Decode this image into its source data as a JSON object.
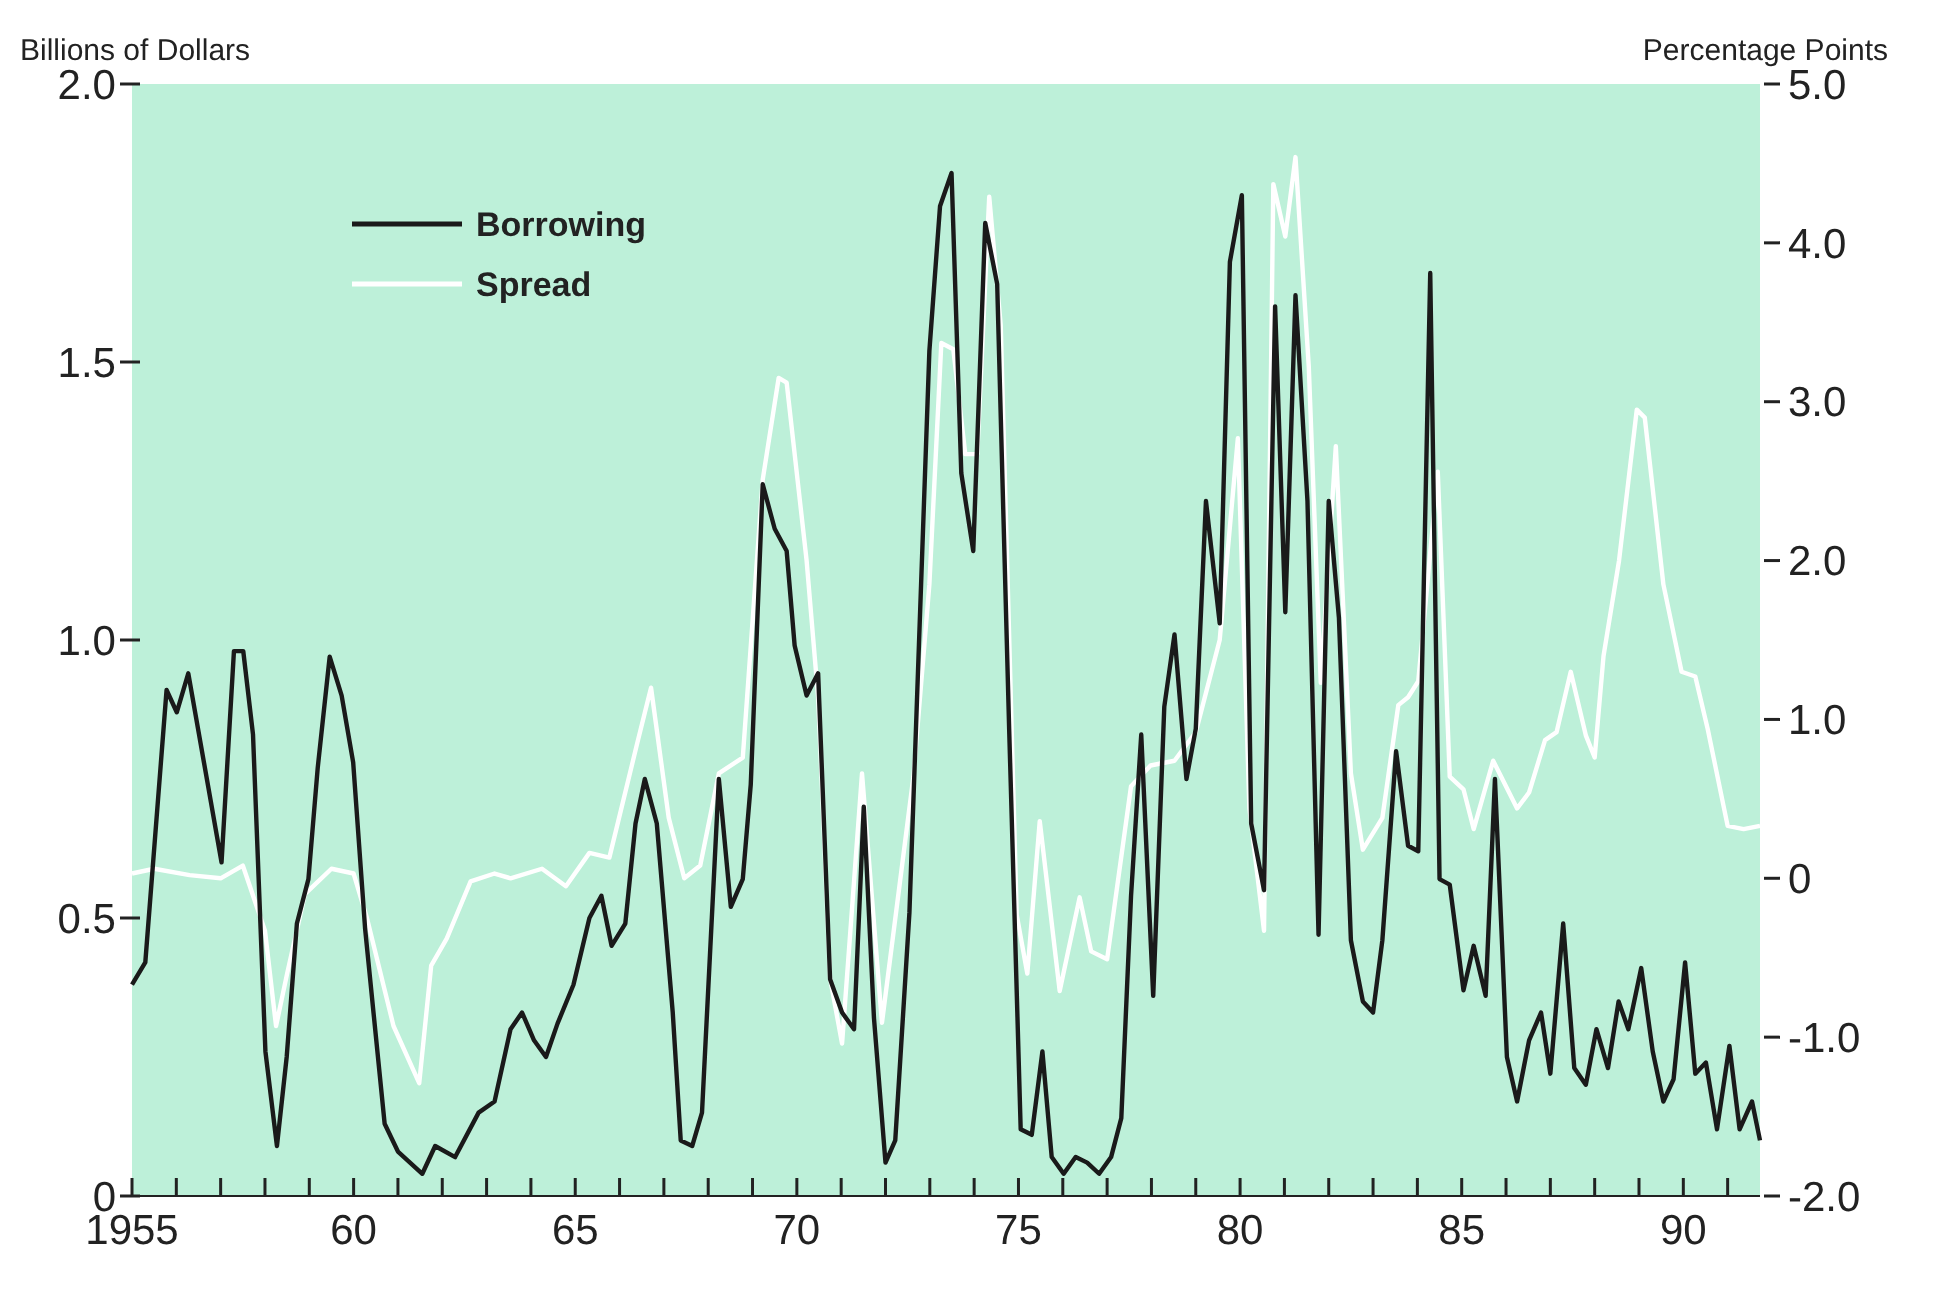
{
  "chart_data": {
    "type": "line",
    "ylabel": "Billions of Dollars",
    "y2label": "Percentage Points",
    "legend": "top left",
    "xlim": [
      1955,
      1991.73
    ],
    "xticks": [
      {
        "value": 1955,
        "label": "1955"
      },
      {
        "value": 1956,
        "label": null
      },
      {
        "value": 1957,
        "label": null
      },
      {
        "value": 1958,
        "label": null
      },
      {
        "value": 1959,
        "label": null
      },
      {
        "value": 1960,
        "label": "60"
      },
      {
        "value": 1961,
        "label": null
      },
      {
        "value": 1962,
        "label": null
      },
      {
        "value": 1963,
        "label": null
      },
      {
        "value": 1964,
        "label": null
      },
      {
        "value": 1965,
        "label": "65"
      },
      {
        "value": 1966,
        "label": null
      },
      {
        "value": 1967,
        "label": null
      },
      {
        "value": 1968,
        "label": null
      },
      {
        "value": 1969,
        "label": null
      },
      {
        "value": 1970,
        "label": "70"
      },
      {
        "value": 1971,
        "label": null
      },
      {
        "value": 1972,
        "label": null
      },
      {
        "value": 1973,
        "label": null
      },
      {
        "value": 1974,
        "label": null
      },
      {
        "value": 1975,
        "label": "75"
      },
      {
        "value": 1976,
        "label": null
      },
      {
        "value": 1977,
        "label": null
      },
      {
        "value": 1978,
        "label": null
      },
      {
        "value": 1979,
        "label": null
      },
      {
        "value": 1980,
        "label": "80"
      },
      {
        "value": 1981,
        "label": null
      },
      {
        "value": 1982,
        "label": null
      },
      {
        "value": 1983,
        "label": null
      },
      {
        "value": 1984,
        "label": null
      },
      {
        "value": 1985,
        "label": "85"
      },
      {
        "value": 1986,
        "label": null
      },
      {
        "value": 1987,
        "label": null
      },
      {
        "value": 1988,
        "label": null
      },
      {
        "value": 1989,
        "label": null
      },
      {
        "value": 1990,
        "label": "90"
      },
      {
        "value": 1991,
        "label": null
      }
    ],
    "ylim": [
      0,
      2
    ],
    "yticks": [
      0,
      0.5,
      {
        "value": 1,
        "label": "1.0"
      },
      1.5,
      {
        "value": 2,
        "label": "2.0"
      }
    ],
    "y2lim": [
      -2,
      5
    ],
    "y2ticks": [
      {
        "value": 5,
        "label": "5.0"
      },
      {
        "value": 4,
        "label": "4.0"
      },
      {
        "value": 3,
        "label": "3.0"
      },
      {
        "value": 2,
        "label": "2.0"
      },
      {
        "value": 1,
        "label": "1.0"
      },
      0,
      {
        "value": -1,
        "label": "-1.0"
      },
      {
        "value": -2,
        "label": "-2.0"
      }
    ],
    "series": [
      {
        "name": "Borrowing",
        "color": "#1a1a1a",
        "x": [
          1955,
          1955.3,
          1955.78,
          1956.01,
          1956.27,
          1957.02,
          1957.3,
          1957.51,
          1957.73,
          1958.01,
          1958.27,
          1958.49,
          1958.72,
          1958.98,
          1959.19,
          1959.46,
          1959.73,
          1959.99,
          1960.26,
          1960.7,
          1961,
          1961.55,
          1961.84,
          1962.29,
          1962.82,
          1963.18,
          1963.54,
          1963.8,
          1964.07,
          1964.34,
          1964.6,
          1964.96,
          1965.32,
          1965.59,
          1965.82,
          1966.13,
          1966.36,
          1966.57,
          1966.84,
          1967.2,
          1967.38,
          1967.64,
          1967.86,
          1968.24,
          1968.51,
          1968.78,
          1968.96,
          1969.23,
          1969.5,
          1969.77,
          1969.95,
          1970.22,
          1970.48,
          1970.75,
          1971.02,
          1971.29,
          1971.51,
          1971.74,
          1972,
          1972.22,
          1972.54,
          1972.99,
          1973.23,
          1973.49,
          1973.71,
          1973.98,
          1974.25,
          1974.52,
          1974.79,
          1975.05,
          1975.3,
          1975.54,
          1975.75,
          1976.02,
          1976.29,
          1976.55,
          1976.82,
          1977.09,
          1977.32,
          1977.54,
          1977.77,
          1978.04,
          1978.29,
          1978.52,
          1978.79,
          1979,
          1979.23,
          1979.54,
          1979.77,
          1980.04,
          1980.25,
          1980.54,
          1980.79,
          1981.02,
          1981.25,
          1981.52,
          1981.77,
          1982,
          1982.23,
          1982.5,
          1982.77,
          1983,
          1983.21,
          1983.52,
          1983.79,
          1984.02,
          1984.29,
          1984.5,
          1984.73,
          1985.04,
          1985.27,
          1985.54,
          1985.75,
          1986.02,
          1986.25,
          1986.52,
          1986.79,
          1987,
          1987.29,
          1987.54,
          1987.8,
          1988.04,
          1988.3,
          1988.54,
          1988.76,
          1989.05,
          1989.31,
          1989.55,
          1989.78,
          1990.04,
          1990.27,
          1990.51,
          1990.76,
          1991.04,
          1991.27,
          1991.55,
          1991.73
        ],
        "values": [
          0.38,
          0.42,
          0.91,
          0.87,
          0.94,
          0.6,
          0.98,
          0.98,
          0.83,
          0.26,
          0.09,
          0.25,
          0.49,
          0.57,
          0.77,
          0.97,
          0.9,
          0.78,
          0.48,
          0.13,
          0.08,
          0.04,
          0.09,
          0.07,
          0.15,
          0.17,
          0.3,
          0.33,
          0.28,
          0.25,
          0.31,
          0.38,
          0.5,
          0.54,
          0.45,
          0.49,
          0.67,
          0.75,
          0.67,
          0.33,
          0.1,
          0.09,
          0.15,
          0.75,
          0.52,
          0.57,
          0.74,
          1.28,
          1.2,
          1.16,
          0.99,
          0.9,
          0.94,
          0.39,
          0.33,
          0.3,
          0.7,
          0.32,
          0.06,
          0.1,
          0.51,
          1.52,
          1.78,
          1.84,
          1.3,
          1.16,
          1.75,
          1.64,
          0.84,
          0.12,
          0.11,
          0.26,
          0.07,
          0.04,
          0.07,
          0.06,
          0.04,
          0.07,
          0.14,
          0.54,
          0.83,
          0.36,
          0.88,
          1.01,
          0.75,
          0.84,
          1.25,
          1.03,
          1.68,
          1.8,
          0.67,
          0.55,
          1.6,
          1.05,
          1.62,
          1.25,
          0.47,
          1.25,
          1.04,
          0.46,
          0.35,
          0.33,
          0.46,
          0.8,
          0.63,
          0.62,
          1.66,
          0.57,
          0.56,
          0.37,
          0.45,
          0.36,
          0.75,
          0.25,
          0.17,
          0.28,
          0.33,
          0.22,
          0.49,
          0.23,
          0.2,
          0.3,
          0.23,
          0.35,
          0.3,
          0.41,
          0.26,
          0.17,
          0.21,
          0.42,
          0.22,
          0.24,
          0.12,
          0.27,
          0.12,
          0.17,
          0.1
        ]
      },
      {
        "name": "Spread",
        "color": "#ffffff",
        "axis": "y2",
        "x": [
          1955,
          1955.5,
          1956.3,
          1957,
          1957.5,
          1958,
          1958.25,
          1958.5,
          1958.9,
          1959.5,
          1960,
          1960.3,
          1960.9,
          1961.48,
          1961.75,
          1962.1,
          1962.64,
          1963.18,
          1963.54,
          1964.25,
          1964.79,
          1965.32,
          1965.77,
          1966.39,
          1966.71,
          1967.11,
          1967.46,
          1967.82,
          1968.24,
          1968.78,
          1969.23,
          1969.59,
          1969.77,
          1970.22,
          1970.48,
          1970.75,
          1971.02,
          1971.47,
          1971.92,
          1972.63,
          1972.99,
          1973.26,
          1973.53,
          1973.8,
          1974.07,
          1974.34,
          1974.6,
          1974.96,
          1975.2,
          1975.48,
          1975.93,
          1976.38,
          1976.64,
          1977,
          1977.54,
          1977.98,
          1978.52,
          1979,
          1979.54,
          1979.95,
          1980.21,
          1980.54,
          1980.75,
          1981.02,
          1981.25,
          1981.55,
          1981.82,
          1982.16,
          1982.5,
          1982.77,
          1983.21,
          1983.57,
          1983.79,
          1984.02,
          1984.46,
          1984.73,
          1985.04,
          1985.27,
          1985.71,
          1986.25,
          1986.52,
          1986.88,
          1987.14,
          1987.46,
          1987.8,
          1988,
          1988.2,
          1988.55,
          1988.95,
          1989.13,
          1989.55,
          1989.96,
          1990.27,
          1990.55,
          1991,
          1991.36,
          1991.73
        ],
        "values": [
          0.03,
          0.06,
          0.02,
          0,
          0.08,
          -0.33,
          -0.93,
          -0.6,
          -0.1,
          0.06,
          0.03,
          -0.25,
          -0.93,
          -1.29,
          -0.55,
          -0.38,
          -0.02,
          0.03,
          0,
          0.06,
          -0.05,
          0.16,
          0.13,
          0.84,
          1.2,
          0.38,
          0,
          0.08,
          0.66,
          0.76,
          2.51,
          3.15,
          3.12,
          2,
          1.14,
          -0.63,
          -1.04,
          0.66,
          -0.91,
          0.64,
          1.85,
          3.37,
          3.33,
          2.67,
          2.67,
          4.29,
          3.48,
          -0.23,
          -0.6,
          0.36,
          -0.71,
          -0.12,
          -0.46,
          -0.51,
          0.58,
          0.71,
          0.74,
          0.92,
          1.5,
          2.77,
          0.44,
          -0.33,
          4.37,
          4.04,
          4.54,
          3.22,
          1.23,
          2.72,
          0.66,
          0.18,
          0.38,
          1.09,
          1.14,
          1.24,
          2.56,
          0.64,
          0.56,
          0.31,
          0.74,
          0.44,
          0.54,
          0.87,
          0.92,
          1.3,
          0.9,
          0.76,
          1.4,
          2,
          2.95,
          2.9,
          1.85,
          1.3,
          1.27,
          0.94,
          0.33,
          0.31,
          0.33
        ]
      }
    ]
  }
}
